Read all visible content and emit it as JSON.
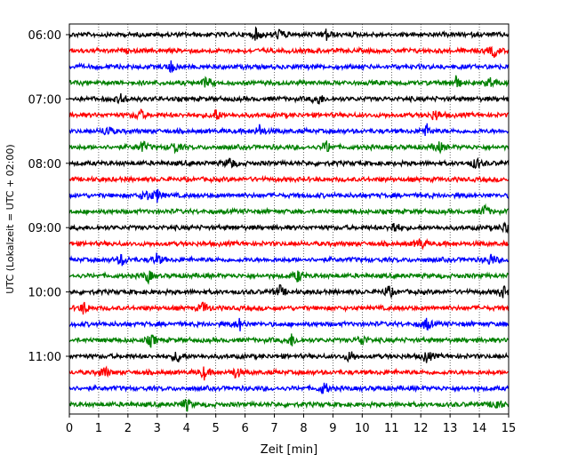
{
  "chart_data": {
    "type": "line",
    "title": "",
    "xlabel": "Zeit  [min]",
    "ylabel": "UTC (Lokalzeit = UTC + 02:00)",
    "xlim": [
      0,
      15
    ],
    "x_ticks": [
      "0",
      "1",
      "2",
      "3",
      "4",
      "5",
      "6",
      "7",
      "8",
      "9",
      "10",
      "11",
      "12",
      "13",
      "14",
      "15"
    ],
    "y_ticks": [
      "06:00",
      "07:00",
      "08:00",
      "09:00",
      "10:00",
      "11:00"
    ],
    "grid": "vertical dotted lines at each minute",
    "trace_interval_min": 15,
    "start_utc": "06:00",
    "end_utc": "11:45",
    "trace_color_cycle": [
      "#000000",
      "#ff0000",
      "#0000ff",
      "#008000"
    ],
    "traces": [
      {
        "start": "06:00",
        "events_min": [
          6.4,
          7.2,
          8.8
        ]
      },
      {
        "start": "06:15",
        "events_min": [
          14.5
        ]
      },
      {
        "start": "06:30",
        "events_min": [
          3.5
        ]
      },
      {
        "start": "06:45",
        "events_min": [
          4.7,
          13.2,
          14.4
        ]
      },
      {
        "start": "07:00",
        "events_min": [
          1.8,
          8.5
        ]
      },
      {
        "start": "07:15",
        "events_min": [
          2.4,
          5.0,
          12.5
        ]
      },
      {
        "start": "07:30",
        "events_min": [
          1.3,
          6.5,
          12.2
        ]
      },
      {
        "start": "07:45",
        "events_min": [
          2.5,
          3.6,
          8.8,
          12.6
        ]
      },
      {
        "start": "08:00",
        "events_min": [
          5.5,
          13.9
        ]
      },
      {
        "start": "08:15",
        "events_min": []
      },
      {
        "start": "08:30",
        "events_min": [
          2.6,
          3.0
        ]
      },
      {
        "start": "08:45",
        "events_min": [
          14.2
        ]
      },
      {
        "start": "09:00",
        "events_min": [
          11.1,
          14.9
        ]
      },
      {
        "start": "09:15",
        "events_min": [
          12.0
        ]
      },
      {
        "start": "09:30",
        "events_min": [
          1.8,
          3.0,
          14.4
        ]
      },
      {
        "start": "09:45",
        "events_min": [
          2.7,
          7.8
        ]
      },
      {
        "start": "10:00",
        "events_min": [
          7.2,
          10.9,
          14.8
        ]
      },
      {
        "start": "10:15",
        "events_min": [
          0.5,
          4.6
        ]
      },
      {
        "start": "10:30",
        "events_min": [
          5.8,
          12.2
        ]
      },
      {
        "start": "10:45",
        "events_min": [
          2.8,
          7.6,
          10.0
        ]
      },
      {
        "start": "11:00",
        "events_min": [
          3.7,
          9.6,
          12.2
        ]
      },
      {
        "start": "11:15",
        "events_min": [
          1.2,
          4.6,
          5.7
        ]
      },
      {
        "start": "11:30",
        "events_min": [
          8.7
        ]
      },
      {
        "start": "11:45",
        "events_min": [
          4.0,
          14.6
        ]
      }
    ]
  }
}
